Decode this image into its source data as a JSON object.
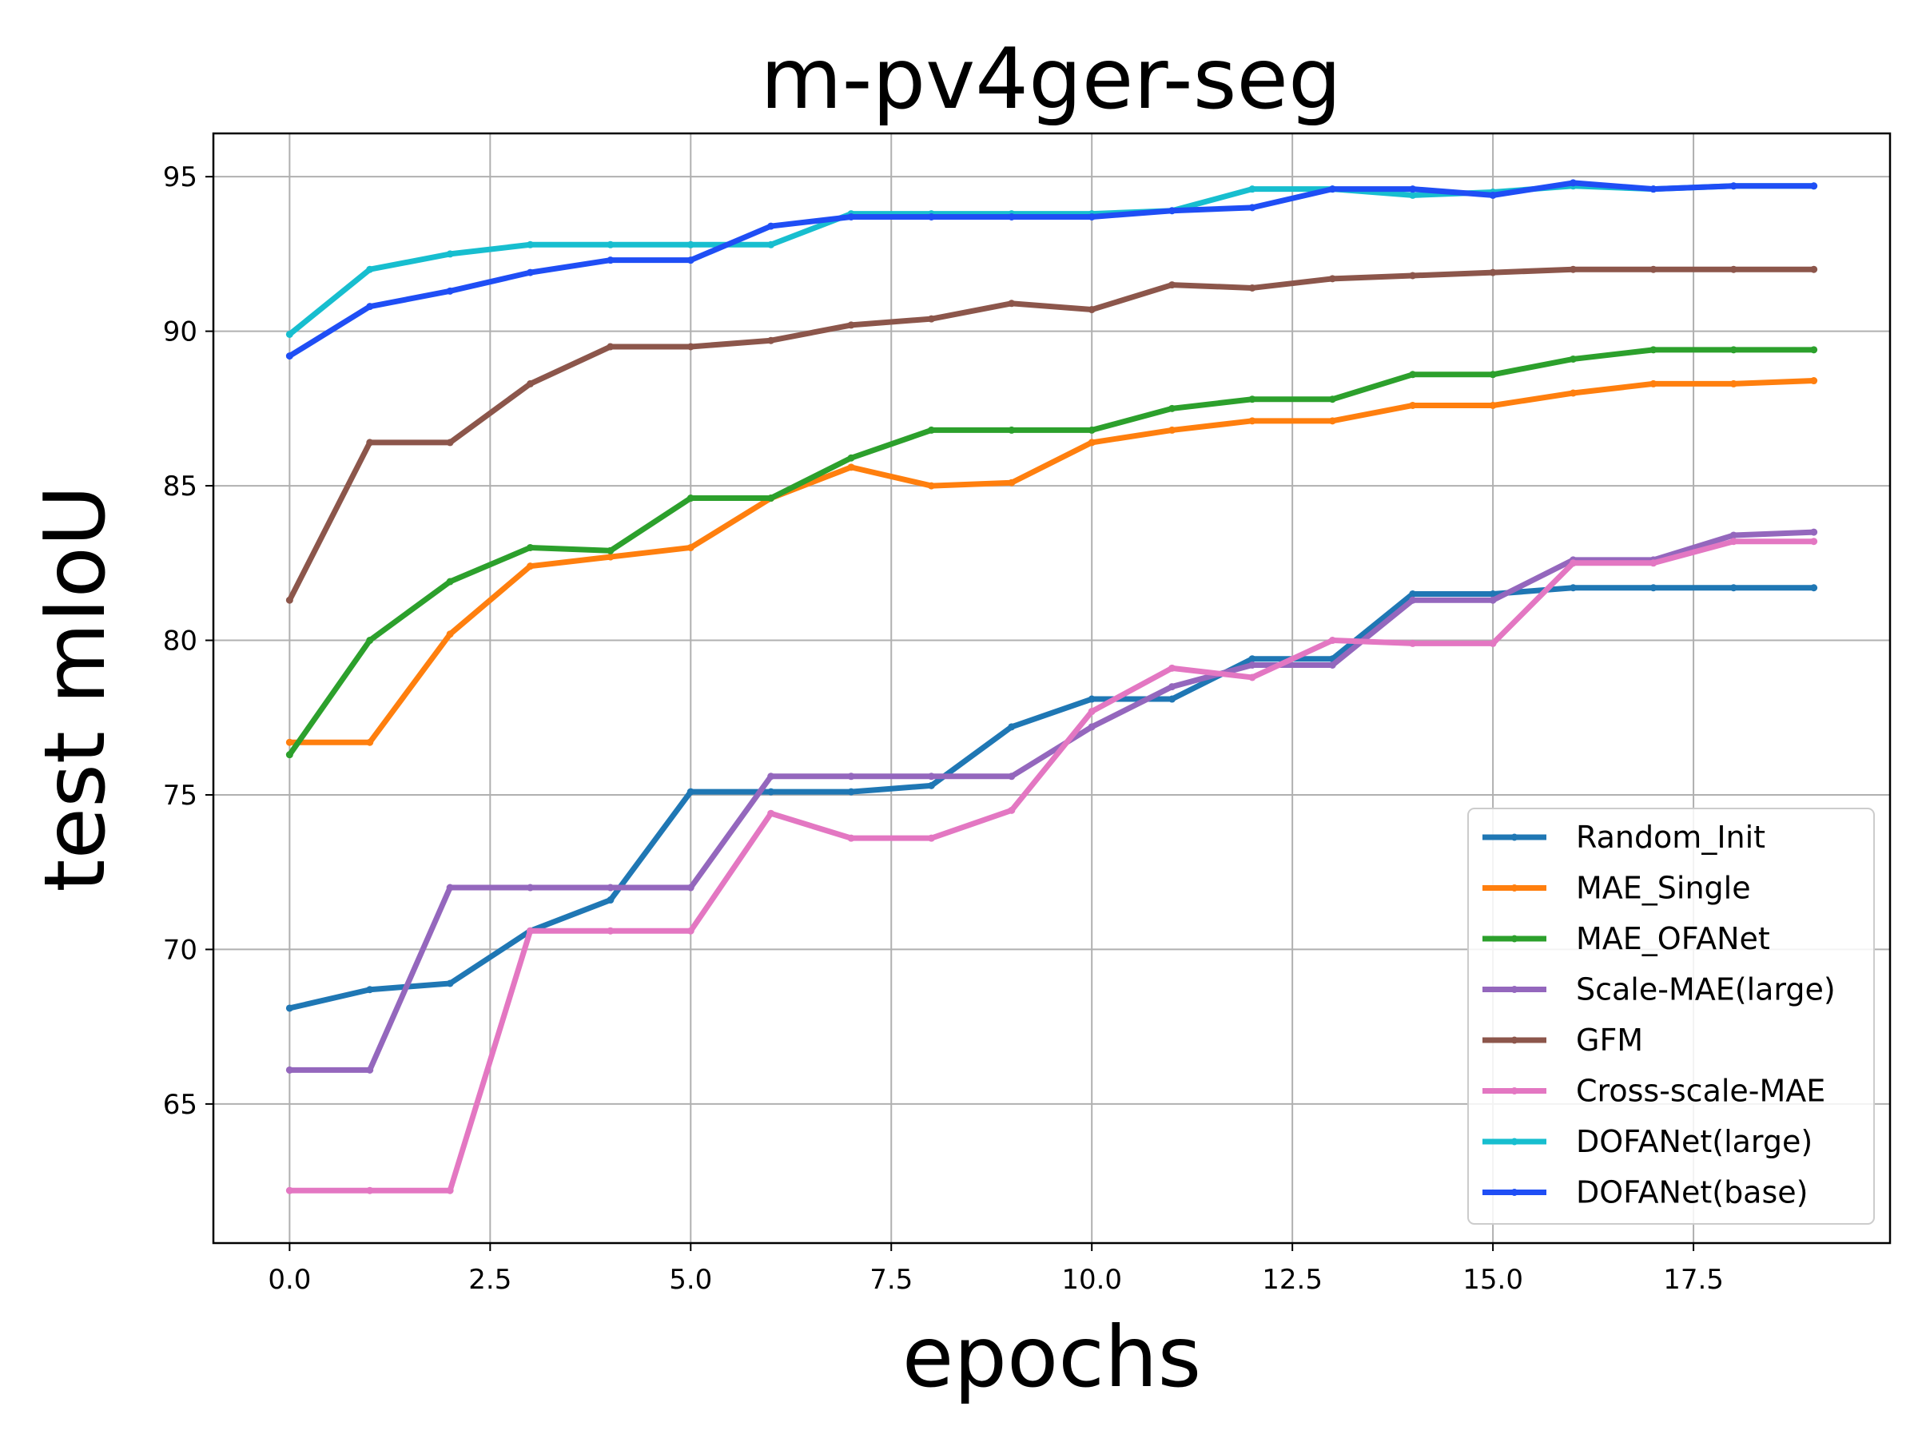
{
  "chart_data": {
    "type": "line",
    "title": "m-pv4ger-seg",
    "xlabel": "epochs",
    "ylabel": "test mIoU",
    "xlim": [
      -0.95,
      19.95
    ],
    "ylim": [
      60.5,
      96.4
    ],
    "xticks": [
      0.0,
      2.5,
      5.0,
      7.5,
      10.0,
      12.5,
      15.0,
      17.5
    ],
    "xtick_labels": [
      "0.0",
      "2.5",
      "5.0",
      "7.5",
      "10.0",
      "12.5",
      "15.0",
      "17.5"
    ],
    "yticks": [
      65,
      70,
      75,
      80,
      85,
      90,
      95
    ],
    "ytick_labels": [
      "65",
      "70",
      "75",
      "80",
      "85",
      "90",
      "95"
    ],
    "grid": true,
    "legend_position": "lower-right",
    "x": [
      0,
      1,
      2,
      3,
      4,
      5,
      6,
      7,
      8,
      9,
      10,
      11,
      12,
      13,
      14,
      15,
      16,
      17,
      18,
      19
    ],
    "series": [
      {
        "name": "Random_Init",
        "color": "#1f77b4",
        "values": [
          68.1,
          68.7,
          68.9,
          70.6,
          71.6,
          75.1,
          75.1,
          75.1,
          75.3,
          77.2,
          78.1,
          78.1,
          79.4,
          79.4,
          81.5,
          81.5,
          81.7,
          81.7,
          81.7,
          81.7
        ]
      },
      {
        "name": "MAE_Single",
        "color": "#ff7f0e",
        "values": [
          76.7,
          76.7,
          80.2,
          82.4,
          82.7,
          83.0,
          84.6,
          85.6,
          85.0,
          85.1,
          86.4,
          86.8,
          87.1,
          87.1,
          87.6,
          87.6,
          88.0,
          88.3,
          88.3,
          88.4
        ]
      },
      {
        "name": "MAE_OFANet",
        "color": "#2ca02c",
        "values": [
          76.3,
          80.0,
          81.9,
          83.0,
          82.9,
          84.6,
          84.6,
          85.9,
          86.8,
          86.8,
          86.8,
          87.5,
          87.8,
          87.8,
          88.6,
          88.6,
          89.1,
          89.4,
          89.4,
          89.4
        ]
      },
      {
        "name": "Scale-MAE(large)",
        "color": "#9467bd",
        "values": [
          66.1,
          66.1,
          72.0,
          72.0,
          72.0,
          72.0,
          75.6,
          75.6,
          75.6,
          75.6,
          77.2,
          78.5,
          79.2,
          79.2,
          81.3,
          81.3,
          82.6,
          82.6,
          83.4,
          83.5
        ]
      },
      {
        "name": "GFM",
        "color": "#8c564b",
        "values": [
          81.3,
          86.4,
          86.4,
          88.3,
          89.5,
          89.5,
          89.7,
          90.2,
          90.4,
          90.9,
          90.7,
          91.5,
          91.4,
          91.7,
          91.8,
          91.9,
          92.0,
          92.0,
          92.0,
          92.0
        ]
      },
      {
        "name": "Cross-scale-MAE",
        "color": "#e377c2",
        "values": [
          62.2,
          62.2,
          62.2,
          70.6,
          70.6,
          70.6,
          74.4,
          73.6,
          73.6,
          74.5,
          77.7,
          79.1,
          78.8,
          80.0,
          79.9,
          79.9,
          82.5,
          82.5,
          83.2,
          83.2
        ]
      },
      {
        "name": "DOFANet(large)",
        "color": "#17becf",
        "values": [
          89.9,
          92.0,
          92.5,
          92.8,
          92.8,
          92.8,
          92.8,
          93.8,
          93.8,
          93.8,
          93.8,
          93.9,
          94.6,
          94.6,
          94.4,
          94.5,
          94.7,
          94.6,
          94.7,
          94.7
        ]
      },
      {
        "name": "DOFANet(base)",
        "color": "#1f4ef5",
        "values": [
          89.2,
          90.8,
          91.3,
          91.9,
          92.3,
          92.3,
          93.4,
          93.7,
          93.7,
          93.7,
          93.7,
          93.9,
          94.0,
          94.6,
          94.6,
          94.4,
          94.8,
          94.6,
          94.7,
          94.7
        ]
      }
    ]
  }
}
